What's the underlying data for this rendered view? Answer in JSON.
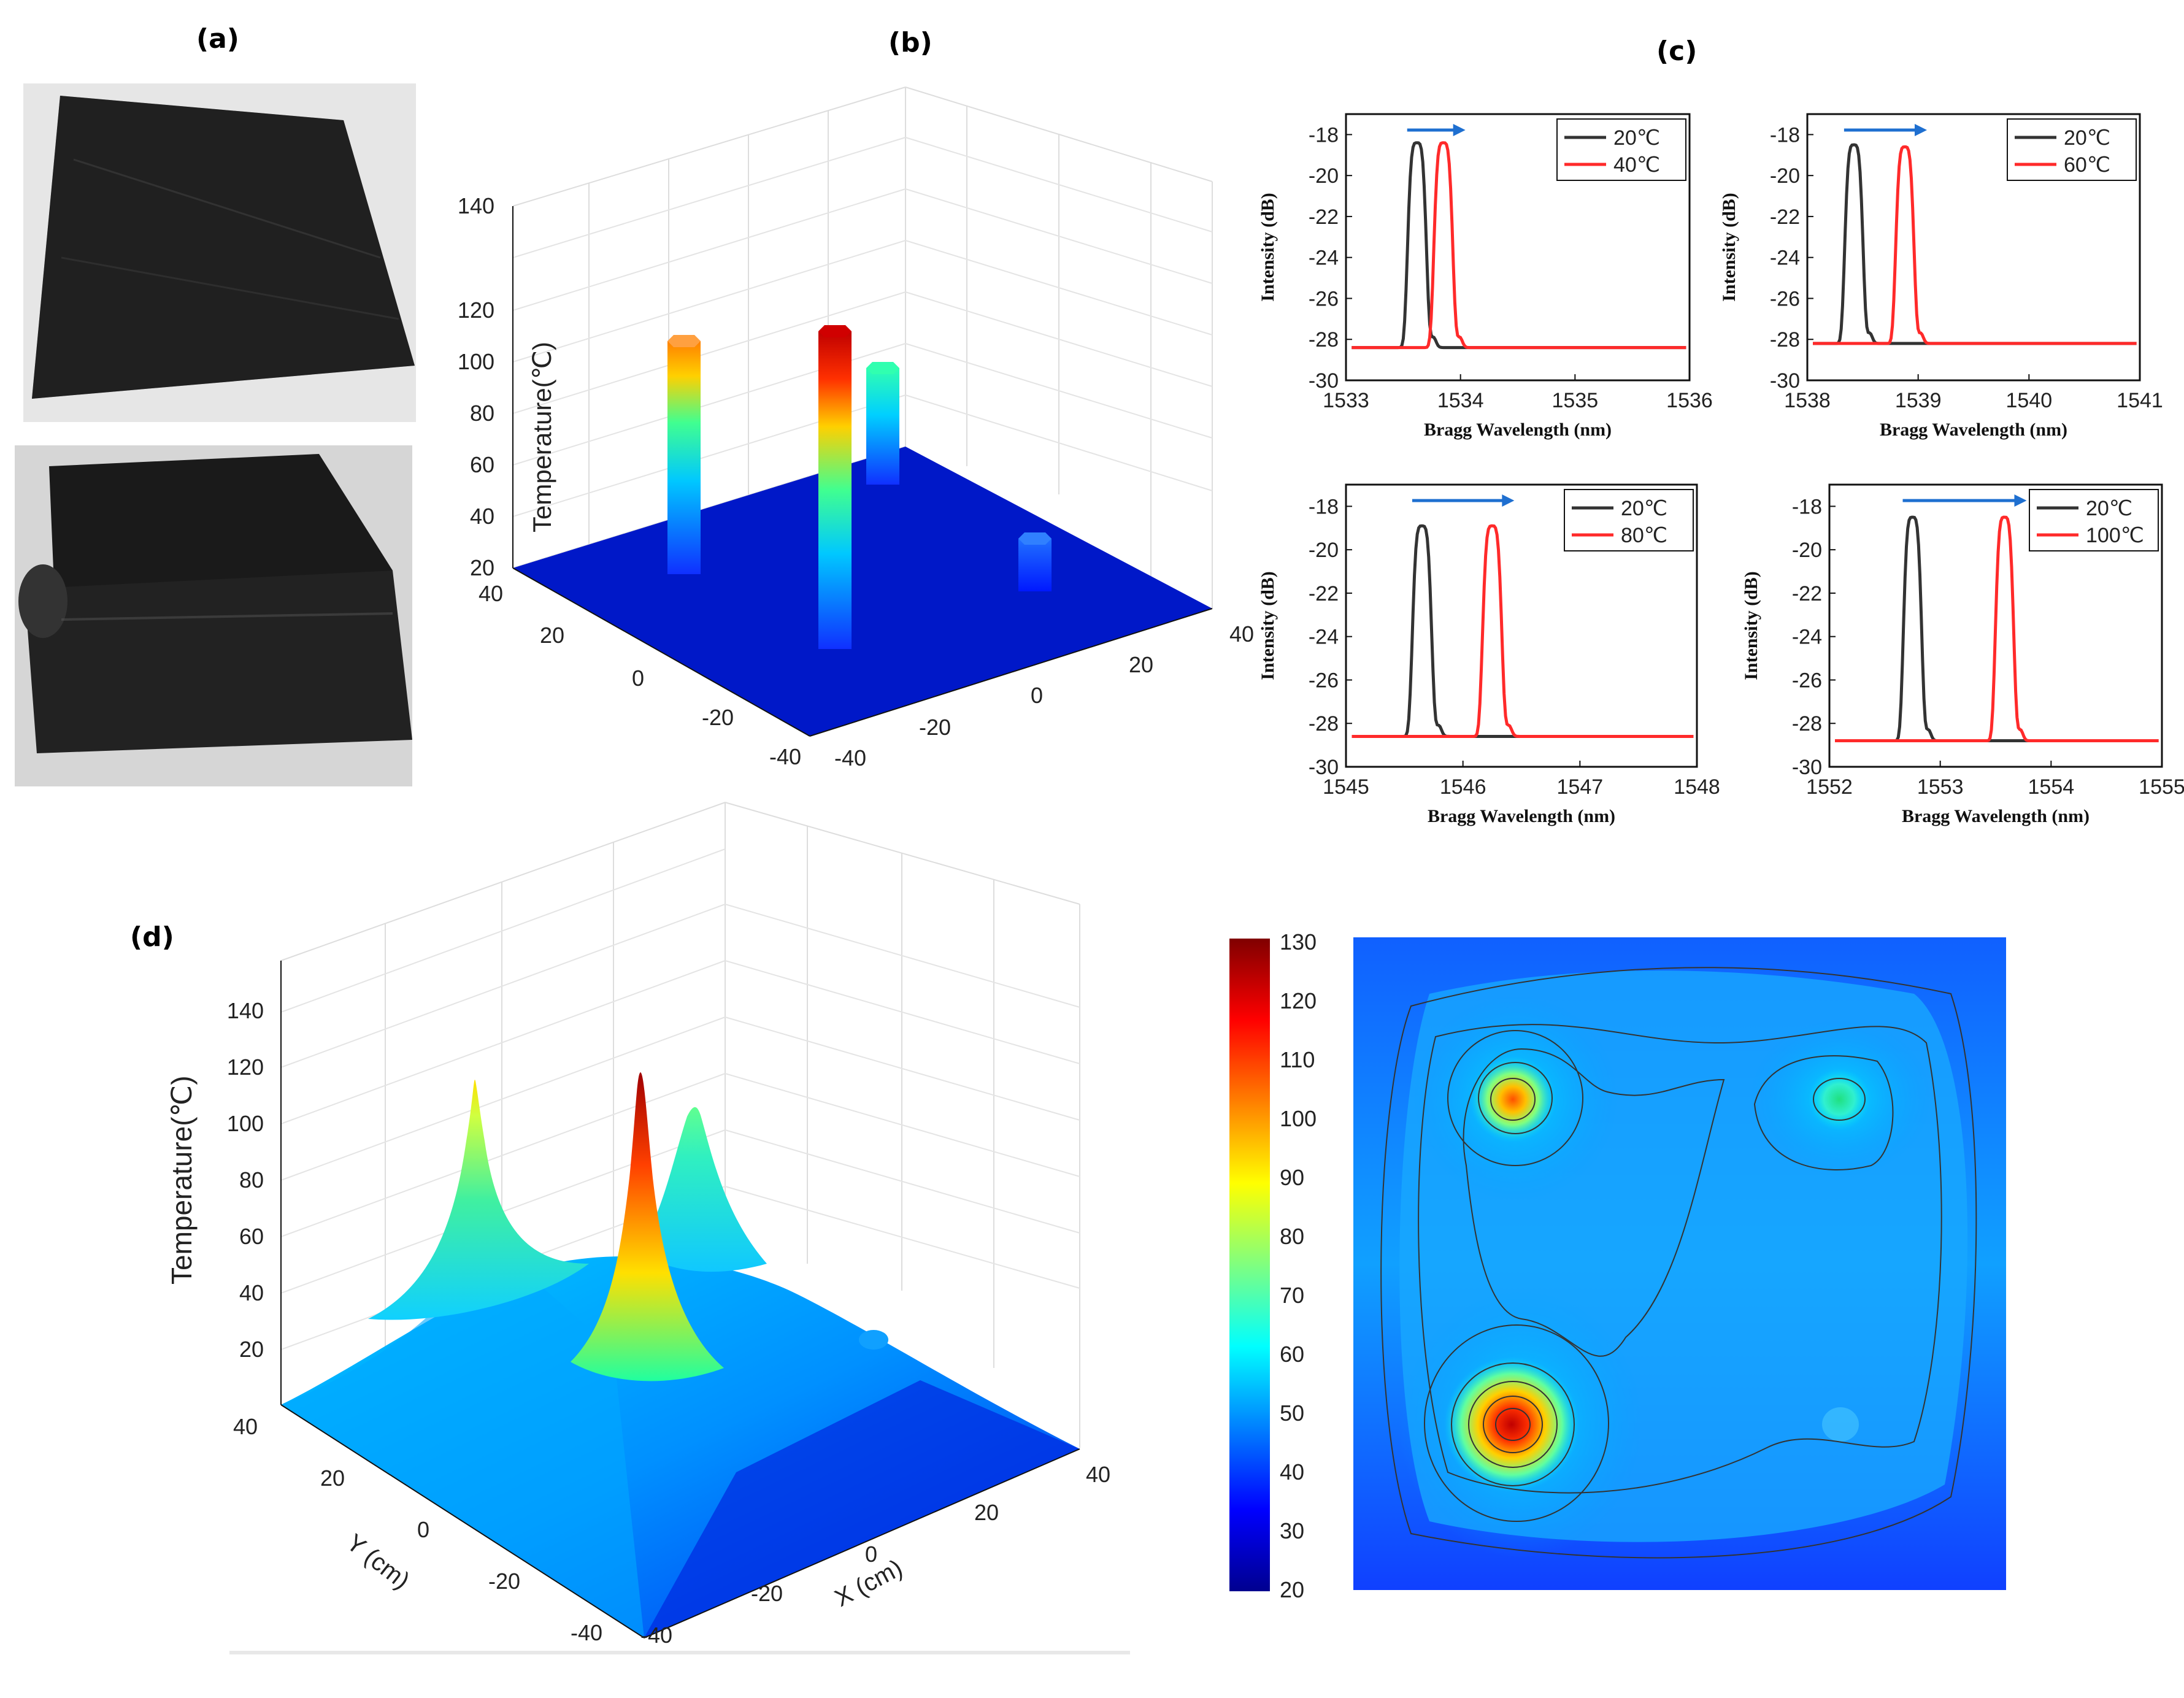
{
  "labels": {
    "a": "(a)",
    "b": "(b)",
    "c": "(c)",
    "d": "(d)"
  },
  "panel_b": {
    "zlabel": "Temperature(℃)",
    "zticks": [
      "20",
      "40",
      "60",
      "80",
      "100",
      "120",
      "140"
    ],
    "yticks": [
      "40",
      "20",
      "0",
      "-20",
      "-40"
    ],
    "xticks": [
      "-40",
      "-20",
      "0",
      "20",
      "40"
    ]
  },
  "panel_d": {
    "zlabel": "Temperature(℃)",
    "zticks": [
      "20",
      "40",
      "60",
      "80",
      "100",
      "120",
      "140"
    ],
    "yticks": [
      "40",
      "20",
      "0",
      "-20",
      "-40"
    ],
    "xticks": [
      "-40",
      "-20",
      "0",
      "20",
      "40"
    ],
    "ylabel": "Y (cm)",
    "xlabel": "X (cm)"
  },
  "colorbar": {
    "ticks": [
      "130",
      "120",
      "110",
      "100",
      "90",
      "80",
      "70",
      "60",
      "50",
      "40",
      "30",
      "20"
    ]
  },
  "chart_data": [
    {
      "type": "line",
      "title": "",
      "xlabel": "Bragg Wavelength (nm)",
      "ylabel": "Intensity (dB)",
      "xlim": [
        1533,
        1536
      ],
      "ylim": [
        -30,
        -17
      ],
      "xticks": [
        "1533",
        "1534",
        "1535",
        "1536"
      ],
      "yticks": [
        "-18",
        "-20",
        "-22",
        "-24",
        "-26",
        "-28",
        "-30"
      ],
      "series": [
        {
          "name": "20℃",
          "color": "#333333",
          "peak": 1533.62,
          "peak_value": -18.4,
          "baseline": -28.4
        },
        {
          "name": "40℃",
          "color": "#ff2a2a",
          "peak": 1533.85,
          "peak_value": -18.4,
          "baseline": -28.4
        }
      ]
    },
    {
      "type": "line",
      "title": "",
      "xlabel": "Bragg Wavelength (nm)",
      "ylabel": "Intensity (dB)",
      "xlim": [
        1538,
        1541
      ],
      "ylim": [
        -30,
        -17
      ],
      "xticks": [
        "1538",
        "1539",
        "1540",
        "1541"
      ],
      "yticks": [
        "-18",
        "-20",
        "-22",
        "-24",
        "-26",
        "-28",
        "-30"
      ],
      "series": [
        {
          "name": "20℃",
          "color": "#333333",
          "peak": 1538.42,
          "peak_value": -18.5,
          "baseline": -28.2
        },
        {
          "name": "60℃",
          "color": "#ff2a2a",
          "peak": 1538.88,
          "peak_value": -18.6,
          "baseline": -28.2
        }
      ]
    },
    {
      "type": "line",
      "title": "",
      "xlabel": "Bragg Wavelength (nm)",
      "ylabel": "Intensity (dB)",
      "xlim": [
        1545,
        1548
      ],
      "ylim": [
        -30,
        -17
      ],
      "xticks": [
        "1545",
        "1546",
        "1547",
        "1548"
      ],
      "yticks": [
        "-18",
        "-20",
        "-22",
        "-24",
        "-26",
        "-28",
        "-30"
      ],
      "series": [
        {
          "name": "20℃",
          "color": "#333333",
          "peak": 1545.65,
          "peak_value": -18.9,
          "baseline": -28.6
        },
        {
          "name": "80℃",
          "color": "#ff2a2a",
          "peak": 1546.25,
          "peak_value": -18.9,
          "baseline": -28.6
        }
      ]
    },
    {
      "type": "line",
      "title": "",
      "xlabel": "Bragg Wavelength (nm)",
      "ylabel": "Intensity (dB)",
      "xlim": [
        1552,
        1555
      ],
      "ylim": [
        -30,
        -17
      ],
      "xticks": [
        "1552",
        "1553",
        "1554",
        "1555"
      ],
      "yticks": [
        "-18",
        "-20",
        "-22",
        "-24",
        "-26",
        "-28",
        "-30"
      ],
      "series": [
        {
          "name": "20℃",
          "color": "#333333",
          "peak": 1552.75,
          "peak_value": -18.5,
          "baseline": -28.8
        },
        {
          "name": "100℃",
          "color": "#ff2a2a",
          "peak": 1553.58,
          "peak_value": -18.5,
          "baseline": -28.8
        }
      ]
    }
  ]
}
